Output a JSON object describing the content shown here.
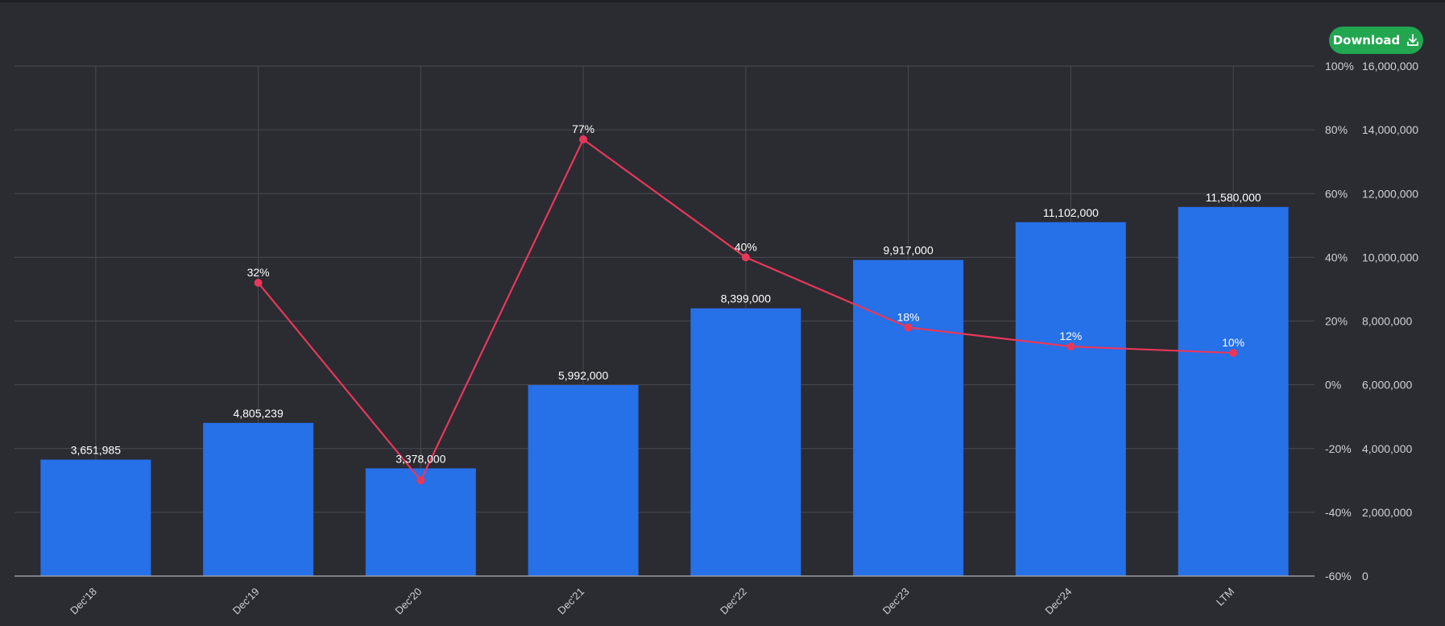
{
  "toolbar": {
    "download_label": "Download",
    "download_icon": "download-icon"
  },
  "colors": {
    "background": "#2b2b32",
    "bar": "#2670e8",
    "line": "#e8385a",
    "grid": "#4a4a52",
    "text": "#ffffff",
    "axis_text": "#d0d0d6",
    "button": "#22a650"
  },
  "chart_data": {
    "type": "bar",
    "title": "",
    "xlabel": "",
    "ylabel": "",
    "categories": [
      "Dec'18",
      "Dec'19",
      "Dec'20",
      "Dec'21",
      "Dec'22",
      "Dec'23",
      "Dec'24",
      "LTM"
    ],
    "series": [
      {
        "type": "bar",
        "axis": "right-outer",
        "values": [
          3651985,
          4805239,
          3378000,
          5992000,
          8399000,
          9917000,
          11102000,
          11580000
        ],
        "value_labels": [
          "3,651,985",
          "4,805,239",
          "3,378,000",
          "5,992,000",
          "8,399,000",
          "9,917,000",
          "11,102,000",
          "11,580,000"
        ]
      },
      {
        "type": "line",
        "axis": "right-inner",
        "values": [
          null,
          32,
          -30,
          77,
          40,
          18,
          12,
          10
        ],
        "value_labels": [
          "",
          "32%",
          "",
          "77%",
          "40%",
          "18%",
          "12%",
          "10%"
        ]
      }
    ],
    "y_value_axis": {
      "ylim": [
        0,
        16000000
      ],
      "ticks": [
        0,
        2000000,
        4000000,
        6000000,
        8000000,
        10000000,
        12000000,
        14000000,
        16000000
      ],
      "tick_labels": [
        "0",
        "2,000,000",
        "4,000,000",
        "6,000,000",
        "8,000,000",
        "10,000,000",
        "12,000,000",
        "14,000,000",
        "16,000,000"
      ]
    },
    "y_percent_axis": {
      "ylim": [
        -60,
        100
      ],
      "ticks": [
        -60,
        -40,
        -20,
        0,
        20,
        40,
        60,
        80,
        100
      ],
      "tick_labels": [
        "-60%",
        "-40%",
        "-20%",
        "0%",
        "20%",
        "40%",
        "60%",
        "80%",
        "100%"
      ]
    },
    "grid": true
  }
}
